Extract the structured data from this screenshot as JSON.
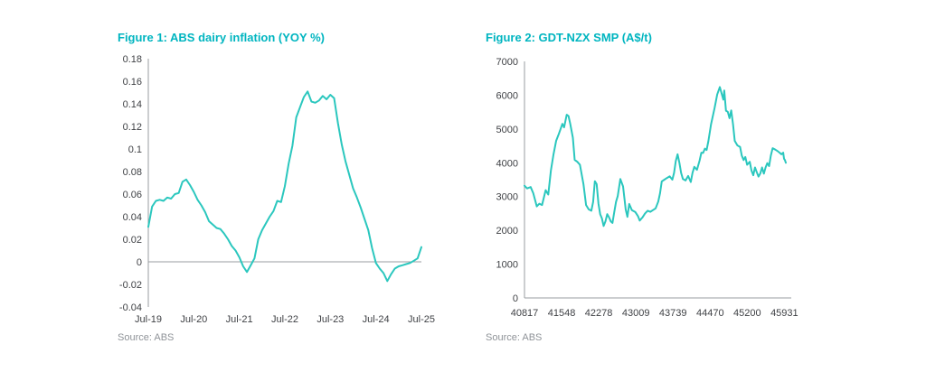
{
  "page": {
    "background": "#ffffff",
    "accent_teal": "#00b5c0"
  },
  "chart_data": [
    {
      "type": "line",
      "title": "Figure 1: ABS dairy inflation (YOY %)",
      "source": "Source: ABS",
      "title_color": "#00b5c0",
      "line_color": "#2bc7be",
      "grid": false,
      "legend": null,
      "x_unit": "months since Jul-19",
      "x_tick_positions": [
        0,
        12,
        24,
        36,
        48,
        60,
        72
      ],
      "x_tick_labels": [
        "Jul-19",
        "Jul-20",
        "Jul-21",
        "Jul-22",
        "Jul-23",
        "Jul-24",
        "Jul-25"
      ],
      "xlim": [
        0,
        72
      ],
      "y_tick_values": [
        0.18,
        0.16,
        0.14,
        0.12,
        0.1,
        0.08,
        0.06,
        0.04,
        0.02,
        0,
        -0.02,
        -0.04
      ],
      "y_tick_labels": [
        "0.18",
        "0.16",
        "0.14",
        "0.12",
        "0.1",
        "0.08",
        "0.06",
        "0.04",
        "0.02",
        "0",
        "-0.02",
        "-0.04"
      ],
      "ylim": [
        -0.04,
        0.18
      ],
      "x_axis_at": 0,
      "values": [
        0.031,
        0.049,
        0.054,
        0.055,
        0.054,
        0.057,
        0.056,
        0.06,
        0.061,
        0.071,
        0.073,
        0.068,
        0.062,
        0.055,
        0.05,
        0.044,
        0.036,
        0.033,
        0.03,
        0.029,
        0.025,
        0.02,
        0.014,
        0.01,
        0.004,
        -0.004,
        -0.009,
        -0.003,
        0.003,
        0.02,
        0.028,
        0.034,
        0.04,
        0.045,
        0.054,
        0.053,
        0.067,
        0.087,
        0.103,
        0.128,
        0.137,
        0.146,
        0.151,
        0.142,
        0.141,
        0.143,
        0.147,
        0.144,
        0.148,
        0.145,
        0.123,
        0.104,
        0.089,
        0.077,
        0.065,
        0.057,
        0.048,
        0.038,
        0.028,
        0.012,
        -0.001,
        -0.006,
        -0.01,
        -0.017,
        -0.011,
        -0.006,
        -0.004,
        -0.003,
        -0.002,
        -0.001,
        0.001,
        0.003,
        0.013
      ]
    },
    {
      "type": "line",
      "title": "Figure 2: GDT-NZX SMP (A$/t)",
      "source": "Source: ABS",
      "title_color": "#00b5c0",
      "line_color": "#2bc7be",
      "grid": false,
      "legend": null,
      "x_unit": "date serial",
      "x_tick_positions": [
        40817,
        41548,
        42278,
        43009,
        43739,
        44470,
        45200,
        45931
      ],
      "x_tick_labels": [
        "40817",
        "41548",
        "42278",
        "43009",
        "43739",
        "44470",
        "45200",
        "45931"
      ],
      "xlim": [
        40817,
        45960
      ],
      "y_tick_values": [
        7000,
        6000,
        5000,
        4000,
        3000,
        2000,
        1000,
        0
      ],
      "y_tick_labels": [
        "7000",
        "6000",
        "5000",
        "4000",
        "3000",
        "2000",
        "1000",
        "0"
      ],
      "ylim": [
        0,
        7000
      ],
      "x_axis_at": 0,
      "x": [
        40817,
        40869,
        40938,
        40990,
        41059,
        41111,
        41163,
        41233,
        41285,
        41337,
        41388,
        41440,
        41492,
        41527,
        41562,
        41596,
        41648,
        41683,
        41717,
        41769,
        41804,
        41856,
        41908,
        41977,
        42029,
        42081,
        42133,
        42168,
        42202,
        42237,
        42272,
        42306,
        42341,
        42375,
        42410,
        42445,
        42479,
        42514,
        42549,
        42583,
        42618,
        42652,
        42704,
        42756,
        42808,
        42843,
        42878,
        42930,
        42999,
        43051,
        43085,
        43137,
        43189,
        43241,
        43293,
        43345,
        43397,
        43449,
        43484,
        43518,
        43570,
        43622,
        43674,
        43726,
        43761,
        43795,
        43830,
        43865,
        43899,
        43934,
        43986,
        44038,
        44090,
        44124,
        44159,
        44211,
        44263,
        44297,
        44332,
        44367,
        44401,
        44436,
        44488,
        44557,
        44609,
        44661,
        44696,
        44730,
        44748,
        44782,
        44817,
        44851,
        44886,
        44921,
        44955,
        45007,
        45059,
        45094,
        45129,
        45163,
        45198,
        45250,
        45284,
        45319,
        45354,
        45388,
        45423,
        45457,
        45492,
        45527,
        45561,
        45596,
        45630,
        45665,
        45700,
        45752,
        45804,
        45838,
        45873,
        45908,
        45925,
        45942,
        45960
      ],
      "values": [
        3320,
        3240,
        3280,
        3100,
        2710,
        2790,
        2750,
        3190,
        3060,
        3770,
        4250,
        4650,
        4850,
        5000,
        5150,
        5050,
        5420,
        5380,
        5150,
        4740,
        4085,
        4030,
        3940,
        3370,
        2750,
        2620,
        2580,
        2840,
        3455,
        3370,
        2790,
        2480,
        2355,
        2130,
        2265,
        2480,
        2390,
        2265,
        2220,
        2530,
        2840,
        3015,
        3520,
        3300,
        2620,
        2400,
        2780,
        2600,
        2540,
        2420,
        2290,
        2380,
        2500,
        2580,
        2550,
        2600,
        2650,
        2850,
        3100,
        3450,
        3500,
        3550,
        3600,
        3500,
        3700,
        4050,
        4250,
        4000,
        3700,
        3520,
        3475,
        3610,
        3430,
        3700,
        3880,
        3790,
        4060,
        4300,
        4290,
        4420,
        4380,
        4650,
        5140,
        5620,
        6020,
        6240,
        6050,
        5870,
        6140,
        5540,
        5510,
        5320,
        5550,
        5140,
        4650,
        4515,
        4470,
        4210,
        4080,
        4170,
        3940,
        4030,
        3770,
        3630,
        3860,
        3720,
        3590,
        3680,
        3860,
        3680,
        3860,
        3990,
        3900,
        4210,
        4430,
        4390,
        4340,
        4300,
        4250,
        4300,
        4120,
        4080,
        4000
      ]
    }
  ]
}
